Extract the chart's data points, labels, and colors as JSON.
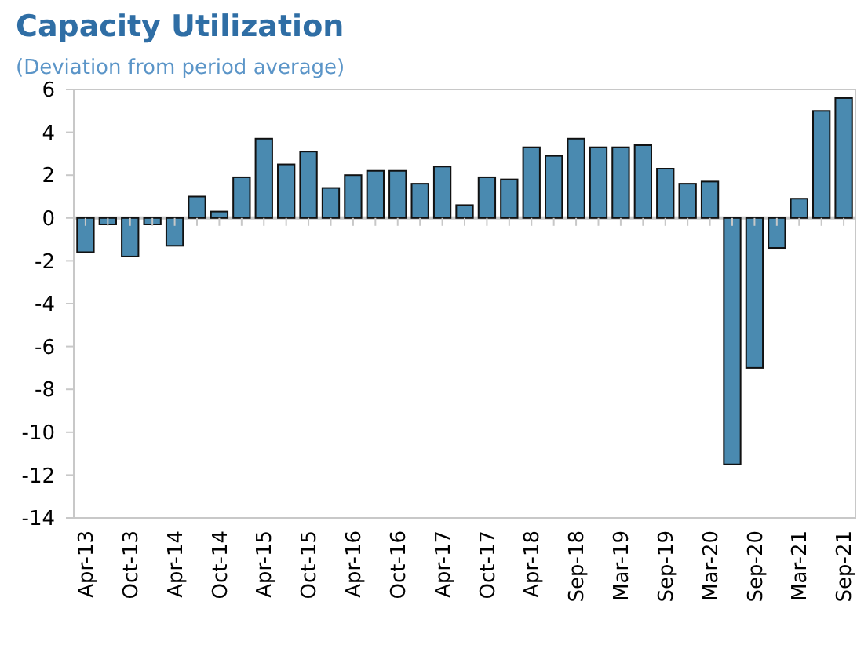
{
  "chart_data": {
    "type": "bar",
    "title": "Capacity Utilization",
    "subtitle": "(Deviation from period average)",
    "categories": [
      "Apr-13",
      null,
      "Oct-13",
      null,
      "Apr-14",
      null,
      "Oct-14",
      null,
      "Apr-15",
      null,
      "Oct-15",
      null,
      "Apr-16",
      null,
      "Oct-16",
      null,
      "Apr-17",
      null,
      "Oct-17",
      null,
      "Apr-18",
      null,
      "Sep-18",
      null,
      "Mar-19",
      null,
      "Sep-19",
      null,
      "Mar-20",
      null,
      "Sep-20",
      null,
      "Mar-21",
      null,
      "Sep-21"
    ],
    "values": [
      -1.6,
      -0.3,
      -1.8,
      -0.3,
      -1.3,
      1.0,
      0.3,
      1.9,
      3.7,
      2.5,
      3.1,
      1.4,
      2.0,
      2.2,
      2.2,
      1.6,
      2.4,
      0.6,
      1.9,
      1.8,
      3.3,
      2.9,
      3.7,
      3.3,
      3.3,
      3.4,
      2.3,
      1.6,
      1.7,
      -11.5,
      -7.0,
      -1.4,
      0.9,
      5.0,
      5.6
    ],
    "color": "#4a8ab0",
    "ylim": [
      -14,
      6
    ],
    "yticks": [
      -14,
      -12,
      -10,
      -8,
      -6,
      -4,
      -2,
      0,
      2,
      4,
      6
    ]
  }
}
